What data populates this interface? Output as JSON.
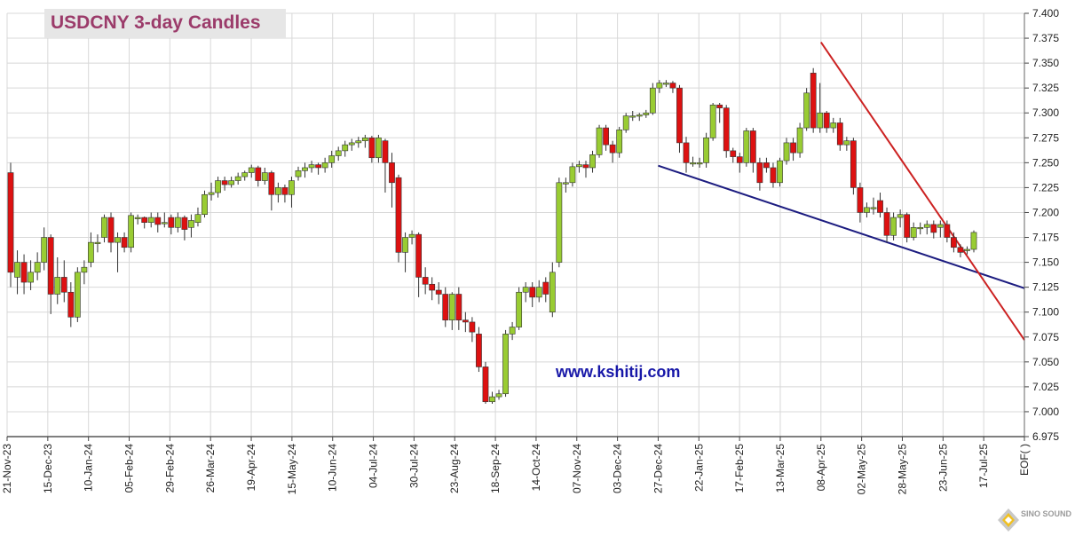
{
  "title": "USDCNY 3-day Candles",
  "watermark": "www.kshitij.com",
  "logo_text": "SINO SOUND",
  "colors": {
    "up": "#99cc33",
    "down": "#dd1111",
    "wick": "#333333",
    "grid": "#d8d8d8",
    "support": "#1c1c80",
    "resistance": "#cc2222",
    "title": "#9b3b6a",
    "watermark": "#1818a8"
  },
  "chart_data": {
    "type": "candlestick",
    "title": "USDCNY 3-day Candles",
    "ylim": [
      6.975,
      7.4
    ],
    "y_ticks": [
      "7.400",
      "7.375",
      "7.350",
      "7.325",
      "7.300",
      "7.275",
      "7.250",
      "7.225",
      "7.200",
      "7.175",
      "7.150",
      "7.125",
      "7.100",
      "7.075",
      "7.050",
      "7.025",
      "7.000",
      "6.975"
    ],
    "x_tick_labels": [
      "21-Nov-23",
      "15-Dec-23",
      "10-Jan-24",
      "05-Feb-24",
      "29-Feb-24",
      "26-Mar-24",
      "19-Apr-24",
      "15-May-24",
      "10-Jun-24",
      "04-Jul-24",
      "30-Jul-24",
      "23-Aug-24",
      "18-Sep-24",
      "14-Oct-24",
      "07-Nov-24",
      "03-Dec-24",
      "27-Dec-24",
      "22-Jan-25",
      "17-Feb-25",
      "13-Mar-25",
      "08-Apr-25",
      "02-May-25",
      "28-May-25",
      "23-Jun-25",
      "17-Jul-25",
      "EOF( )"
    ],
    "grid": true,
    "trendlines": [
      {
        "name": "support",
        "from": [
          "27-Dec-24",
          7.247
        ],
        "to": [
          "EOF( )",
          7.124
        ]
      },
      {
        "name": "resistance",
        "from": [
          "08-Apr-25",
          7.371
        ],
        "to": [
          "EOF( )",
          7.072
        ]
      }
    ],
    "candles": [
      [
        7.24,
        7.14,
        7.25,
        7.125
      ],
      [
        7.135,
        7.15,
        7.162,
        7.118
      ],
      [
        7.15,
        7.13,
        7.158,
        7.118
      ],
      [
        7.13,
        7.14,
        7.152,
        7.122
      ],
      [
        7.14,
        7.15,
        7.16,
        7.132
      ],
      [
        7.15,
        7.175,
        7.185,
        7.142
      ],
      [
        7.175,
        7.118,
        7.178,
        7.098
      ],
      [
        7.118,
        7.135,
        7.155,
        7.108
      ],
      [
        7.135,
        7.12,
        7.152,
        7.11
      ],
      [
        7.12,
        7.095,
        7.13,
        7.085
      ],
      [
        7.095,
        7.14,
        7.145,
        7.09
      ],
      [
        7.14,
        7.145,
        7.152,
        7.128
      ],
      [
        7.15,
        7.17,
        7.18,
        7.145
      ],
      [
        7.17,
        7.17,
        7.178,
        7.16
      ],
      [
        7.175,
        7.195,
        7.198,
        7.17
      ],
      [
        7.195,
        7.17,
        7.2,
        7.16
      ],
      [
        7.17,
        7.175,
        7.18,
        7.14
      ],
      [
        7.175,
        7.165,
        7.18,
        7.16
      ],
      [
        7.165,
        7.197,
        7.2,
        7.16
      ],
      [
        7.195,
        7.195,
        7.198,
        7.188
      ],
      [
        7.195,
        7.19,
        7.196,
        7.184
      ],
      [
        7.19,
        7.195,
        7.2,
        7.185
      ],
      [
        7.195,
        7.188,
        7.2,
        7.18
      ],
      [
        7.19,
        7.19,
        7.2,
        7.185
      ],
      [
        7.195,
        7.185,
        7.198,
        7.178
      ],
      [
        7.185,
        7.195,
        7.2,
        7.18
      ],
      [
        7.195,
        7.183,
        7.197,
        7.172
      ],
      [
        7.185,
        7.192,
        7.198,
        7.175
      ],
      [
        7.19,
        7.198,
        7.205,
        7.186
      ],
      [
        7.198,
        7.218,
        7.222,
        7.195
      ],
      [
        7.218,
        7.22,
        7.23,
        7.212
      ],
      [
        7.22,
        7.232,
        7.236,
        7.215
      ],
      [
        7.232,
        7.228,
        7.236,
        7.222
      ],
      [
        7.228,
        7.232,
        7.236,
        7.225
      ],
      [
        7.232,
        7.236,
        7.24,
        7.228
      ],
      [
        7.236,
        7.24,
        7.242,
        7.232
      ],
      [
        7.24,
        7.245,
        7.248,
        7.235
      ],
      [
        7.245,
        7.232,
        7.247,
        7.226
      ],
      [
        7.232,
        7.24,
        7.245,
        7.228
      ],
      [
        7.24,
        7.218,
        7.242,
        7.202
      ],
      [
        7.218,
        7.225,
        7.23,
        7.21
      ],
      [
        7.225,
        7.218,
        7.228,
        7.21
      ],
      [
        7.218,
        7.232,
        7.236,
        7.205
      ],
      [
        7.236,
        7.242,
        7.246,
        7.232
      ],
      [
        7.242,
        7.245,
        7.25,
        7.235
      ],
      [
        7.245,
        7.248,
        7.252,
        7.24
      ],
      [
        7.248,
        7.245,
        7.25,
        7.238
      ],
      [
        7.245,
        7.25,
        7.255,
        7.24
      ],
      [
        7.25,
        7.257,
        7.262,
        7.245
      ],
      [
        7.257,
        7.262,
        7.266,
        7.252
      ],
      [
        7.262,
        7.268,
        7.272,
        7.256
      ],
      [
        7.268,
        7.27,
        7.274,
        7.262
      ],
      [
        7.27,
        7.272,
        7.276,
        7.265
      ],
      [
        7.272,
        7.275,
        7.278,
        7.265
      ],
      [
        7.275,
        7.255,
        7.277,
        7.25
      ],
      [
        7.255,
        7.275,
        7.278,
        7.25
      ],
      [
        7.272,
        7.25,
        7.274,
        7.22
      ],
      [
        7.25,
        7.23,
        7.26,
        7.205
      ],
      [
        7.235,
        7.16,
        7.238,
        7.15
      ],
      [
        7.16,
        7.175,
        7.18,
        7.14
      ],
      [
        7.175,
        7.178,
        7.182,
        7.168
      ],
      [
        7.178,
        7.135,
        7.18,
        7.115
      ],
      [
        7.135,
        7.128,
        7.145,
        7.118
      ],
      [
        7.128,
        7.122,
        7.135,
        7.112
      ],
      [
        7.122,
        7.118,
        7.13,
        7.108
      ],
      [
        7.118,
        7.092,
        7.125,
        7.085
      ],
      [
        7.092,
        7.118,
        7.12,
        7.082
      ],
      [
        7.118,
        7.092,
        7.125,
        7.082
      ],
      [
        7.092,
        7.09,
        7.1,
        7.08
      ],
      [
        7.09,
        7.08,
        7.095,
        7.07
      ],
      [
        7.078,
        7.045,
        7.085,
        7.04
      ],
      [
        7.045,
        7.01,
        7.05,
        7.008
      ],
      [
        7.01,
        7.015,
        7.02,
        7.008
      ],
      [
        7.015,
        7.018,
        7.022,
        7.012
      ],
      [
        7.018,
        7.078,
        7.082,
        7.015
      ],
      [
        7.078,
        7.085,
        7.09,
        7.072
      ],
      [
        7.085,
        7.12,
        7.125,
        7.082
      ],
      [
        7.12,
        7.125,
        7.13,
        7.11
      ],
      [
        7.125,
        7.115,
        7.13,
        7.105
      ],
      [
        7.115,
        7.125,
        7.132,
        7.11
      ],
      [
        7.13,
        7.118,
        7.135,
        7.11
      ],
      [
        7.1,
        7.14,
        7.15,
        7.095
      ],
      [
        7.15,
        7.23,
        7.235,
        7.145
      ],
      [
        7.23,
        7.23,
        7.235,
        7.22
      ],
      [
        7.23,
        7.246,
        7.25,
        7.226
      ],
      [
        7.246,
        7.248,
        7.252,
        7.24
      ],
      [
        7.248,
        7.245,
        7.252,
        7.235
      ],
      [
        7.245,
        7.258,
        7.262,
        7.24
      ],
      [
        7.258,
        7.285,
        7.288,
        7.255
      ],
      [
        7.285,
        7.268,
        7.288,
        7.262
      ],
      [
        7.268,
        7.26,
        7.272,
        7.25
      ],
      [
        7.26,
        7.283,
        7.286,
        7.255
      ],
      [
        7.283,
        7.297,
        7.3,
        7.28
      ],
      [
        7.297,
        7.297,
        7.302,
        7.292
      ],
      [
        7.297,
        7.298,
        7.3,
        7.292
      ],
      [
        7.298,
        7.3,
        7.303,
        7.295
      ],
      [
        7.3,
        7.325,
        7.33,
        7.298
      ],
      [
        7.325,
        7.33,
        7.333,
        7.32
      ],
      [
        7.33,
        7.33,
        7.333,
        7.326
      ],
      [
        7.33,
        7.325,
        7.332,
        7.32
      ],
      [
        7.325,
        7.27,
        7.328,
        7.26
      ],
      [
        7.27,
        7.25,
        7.276,
        7.24
      ],
      [
        7.25,
        7.25,
        7.256,
        7.246
      ],
      [
        7.25,
        7.25,
        7.255,
        7.245
      ],
      [
        7.25,
        7.275,
        7.28,
        7.245
      ],
      [
        7.275,
        7.308,
        7.31,
        7.272
      ],
      [
        7.308,
        7.305,
        7.31,
        7.29
      ],
      [
        7.305,
        7.262,
        7.308,
        7.255
      ],
      [
        7.262,
        7.256,
        7.265,
        7.25
      ],
      [
        7.256,
        7.25,
        7.26,
        7.24
      ],
      [
        7.25,
        7.282,
        7.285,
        7.246
      ],
      [
        7.282,
        7.25,
        7.285,
        7.24
      ],
      [
        7.25,
        7.23,
        7.255,
        7.222
      ],
      [
        7.25,
        7.245,
        7.255,
        7.24
      ],
      [
        7.245,
        7.23,
        7.25,
        7.225
      ],
      [
        7.23,
        7.252,
        7.255,
        7.226
      ],
      [
        7.252,
        7.27,
        7.275,
        7.248
      ],
      [
        7.27,
        7.26,
        7.275,
        7.252
      ],
      [
        7.26,
        7.285,
        7.29,
        7.255
      ],
      [
        7.285,
        7.32,
        7.325,
        7.282
      ],
      [
        7.34,
        7.285,
        7.345,
        7.28
      ],
      [
        7.285,
        7.3,
        7.33,
        7.28
      ],
      [
        7.3,
        7.285,
        7.302,
        7.28
      ],
      [
        7.285,
        7.29,
        7.295,
        7.28
      ],
      [
        7.29,
        7.268,
        7.295,
        7.262
      ],
      [
        7.268,
        7.272,
        7.276,
        7.262
      ],
      [
        7.272,
        7.225,
        7.275,
        7.218
      ],
      [
        7.225,
        7.2,
        7.23,
        7.19
      ],
      [
        7.2,
        7.205,
        7.21,
        7.195
      ],
      [
        7.205,
        7.205,
        7.215,
        7.198
      ],
      [
        7.212,
        7.2,
        7.22,
        7.195
      ],
      [
        7.2,
        7.177,
        7.205,
        7.17
      ],
      [
        7.177,
        7.195,
        7.2,
        7.172
      ],
      [
        7.195,
        7.198,
        7.203,
        7.185
      ],
      [
        7.198,
        7.175,
        7.2,
        7.17
      ],
      [
        7.175,
        7.185,
        7.19,
        7.172
      ],
      [
        7.185,
        7.185,
        7.19,
        7.178
      ],
      [
        7.185,
        7.188,
        7.192,
        7.178
      ],
      [
        7.188,
        7.18,
        7.192,
        7.174
      ],
      [
        7.185,
        7.188,
        7.192,
        7.175
      ],
      [
        7.188,
        7.175,
        7.192,
        7.17
      ],
      [
        7.175,
        7.165,
        7.18,
        7.16
      ],
      [
        7.165,
        7.16,
        7.168,
        7.155
      ],
      [
        7.162,
        7.163,
        7.166,
        7.158
      ],
      [
        7.163,
        7.18,
        7.182,
        7.16
      ]
    ]
  }
}
